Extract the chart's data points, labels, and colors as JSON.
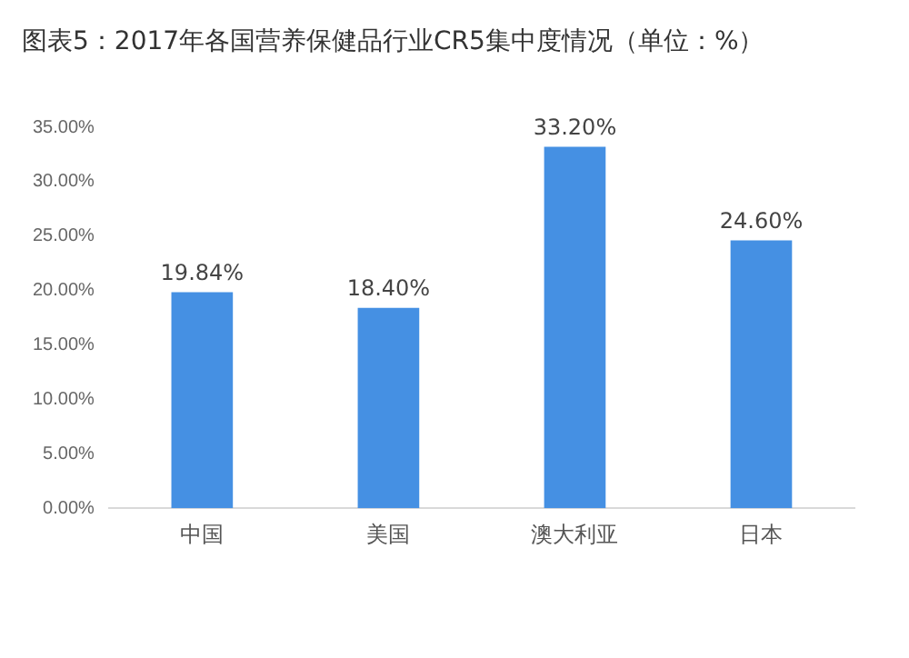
{
  "chart_data": {
    "type": "bar",
    "title": "图表5：2017年各国营养保健品行业CR5集中度情况（单位：%）",
    "categories": [
      "中国",
      "美国",
      "澳大利亚",
      "日本"
    ],
    "values": [
      19.84,
      18.4,
      33.2,
      24.6
    ],
    "value_labels": [
      "19.84%",
      "18.40%",
      "33.20%",
      "24.60%"
    ],
    "color": "#4590e3",
    "ylim": [
      0,
      35
    ],
    "yticks": [
      {
        "value": 0,
        "label": "0.00%"
      },
      {
        "value": 5,
        "label": "5.00%"
      },
      {
        "value": 10,
        "label": "10.00%"
      },
      {
        "value": 15,
        "label": "15.00%"
      },
      {
        "value": 20,
        "label": "20.00%"
      },
      {
        "value": 25,
        "label": "25.00%"
      },
      {
        "value": 30,
        "label": "30.00%"
      },
      {
        "value": 35,
        "label": "35.00%"
      }
    ],
    "grid": false,
    "legend": false
  }
}
